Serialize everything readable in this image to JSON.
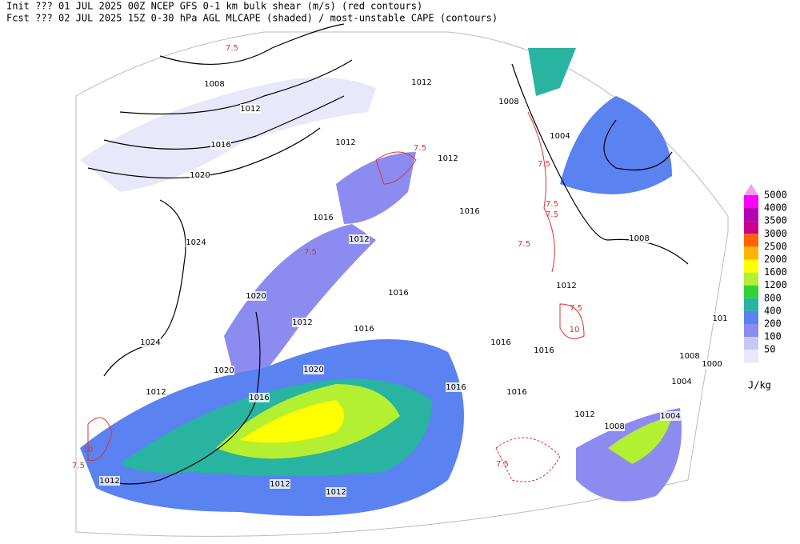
{
  "header": {
    "line1": "Init  ??? 01 JUL 2025 00Z  NCEP GFS 0-1 km bulk shear (m/s) (red contours)",
    "line2": "Fcst ??? 02 JUL 2025 15Z  0-30 hPa AGL MLCAPE (shaded) / most-unstable CAPE (contours)"
  },
  "legend": {
    "levels": [
      "5000",
      "4000",
      "3500",
      "3000",
      "2500",
      "2000",
      "1600",
      "1200",
      "800",
      "400",
      "200",
      "100",
      "50"
    ],
    "colors": [
      "#ff00ff",
      "#b400b4",
      "#c8008c",
      "#ff6400",
      "#ffb400",
      "#ffff00",
      "#b4f032",
      "#32d232",
      "#28b4a0",
      "#5a82f0",
      "#8c8cf0",
      "#c8c8f5",
      "#e8e8fa"
    ],
    "top_color": "#f0a0f0",
    "unit": "J/kg"
  },
  "isobar_labels": [
    "1008",
    "1012",
    "1016",
    "1020",
    "1024",
    "1012",
    "1008",
    "1004",
    "1012",
    "1012",
    "1016",
    "1016",
    "1012",
    "1008",
    "1012",
    "1020",
    "1016",
    "1012",
    "1016",
    "1016",
    "1016",
    "1024",
    "1020",
    "1020",
    "1012",
    "1016",
    "1016",
    "1016",
    "1012",
    "1008",
    "1004",
    "1008",
    "1000",
    "1004",
    "1012",
    "1012",
    "1012",
    "101"
  ],
  "shear_labels": [
    "7.5",
    "7.5",
    "7.5",
    "7.5",
    "7.5",
    "7.5",
    "7.5",
    "10",
    "7.5",
    "10",
    "7.5",
    "7.5"
  ]
}
